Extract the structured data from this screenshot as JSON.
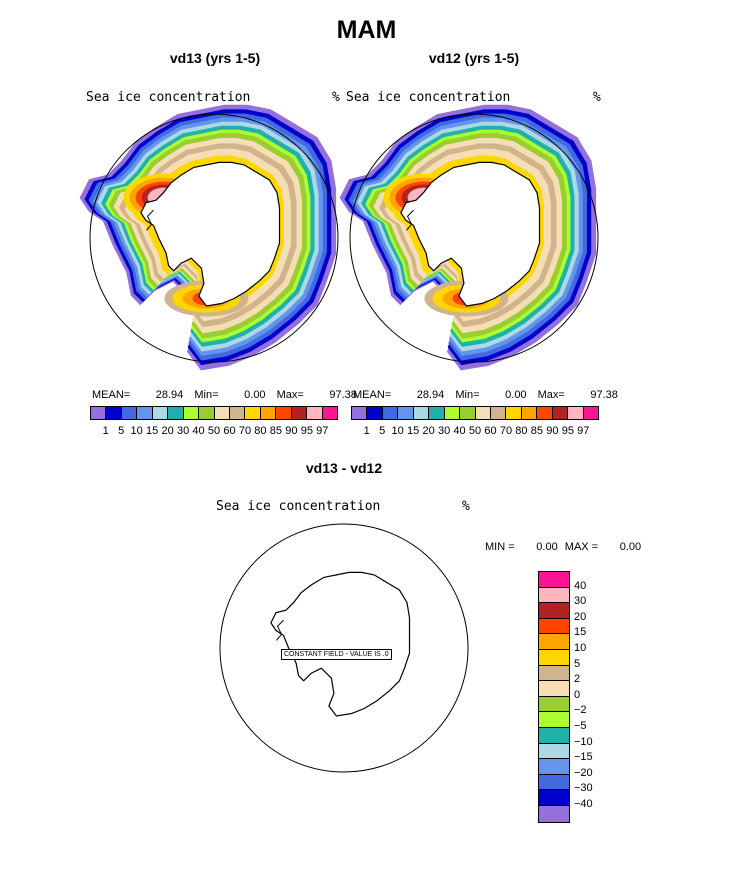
{
  "title": "MAM",
  "palette": [
    "#9370DB",
    "#0000CD",
    "#4169E1",
    "#6495ED",
    "#ADD8E6",
    "#20B2AA",
    "#ADFF2F",
    "#9ACD32",
    "#F5DEB3",
    "#D2B48C",
    "#FFD700",
    "#FFA500",
    "#FF4500",
    "#B22222",
    "#FFB6C1",
    "#FF1493"
  ],
  "panels": [
    {
      "title": "vd13 (yrs 1-5)",
      "field_label": "Sea ice concentration",
      "unit": "%",
      "stats": {
        "mean_label": "MEAN=",
        "mean": "28.94",
        "min_label": "Min=",
        "min": "0.00",
        "max_label": "Max=",
        "max": "97.38"
      }
    },
    {
      "title": "vd12 (yrs 1-5)",
      "field_label": "Sea ice concentration",
      "unit": "%",
      "stats": {
        "mean_label": "MEAN=",
        "mean": "28.94",
        "min_label": "Min=",
        "min": "0.00",
        "max_label": "Max=",
        "max": "97.38"
      }
    }
  ],
  "colorbar_labels": [
    "1",
    "5",
    "10",
    "15",
    "20",
    "30",
    "40",
    "50",
    "60",
    "70",
    "80",
    "85",
    "90",
    "95",
    "97"
  ],
  "diff": {
    "title": "vd13 - vd12",
    "field_label": "Sea ice concentration",
    "unit": "%",
    "min_label": "MIN =",
    "min": "0.00",
    "max_label": "MAX =",
    "max": "0.00",
    "constant_note": "CONSTANT FIELD - VALUE IS .0",
    "colorbar_labels": [
      "40",
      "30",
      "20",
      "15",
      "10",
      "5",
      "2",
      "0",
      "−2",
      "−5",
      "−10",
      "−15",
      "−20",
      "−30",
      "−40"
    ]
  }
}
